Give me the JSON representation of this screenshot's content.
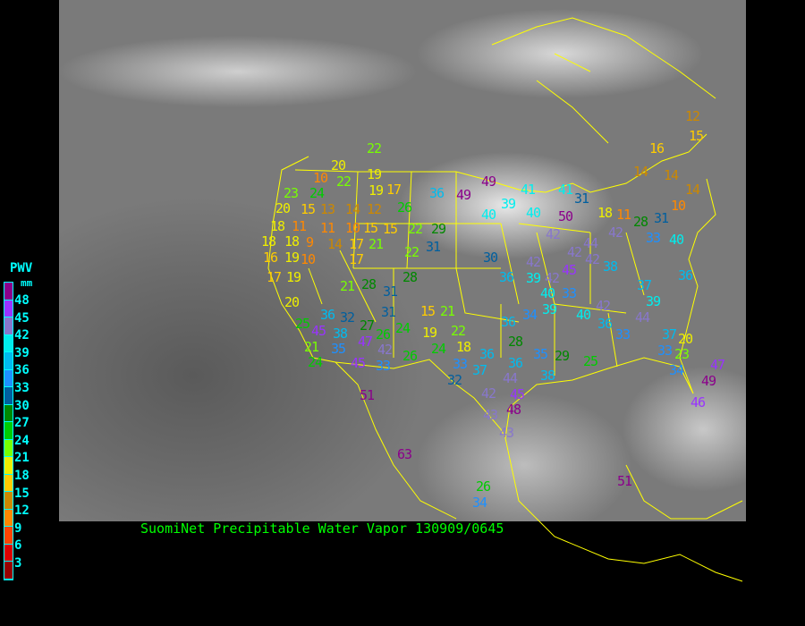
{
  "title": "SuomiNet Precipitable Water Vapor  130909/0645",
  "legend": {
    "title": "PWV",
    "unit": "mm",
    "labels": [
      "48",
      "45",
      "42",
      "39",
      "36",
      "33",
      "30",
      "27",
      "24",
      "21",
      "18",
      "15",
      "12",
      "9",
      "6",
      "3"
    ],
    "colors": [
      "#8b008b",
      "#9933ff",
      "#8877cc",
      "#00eeee",
      "#00bbee",
      "#1e90ff",
      "#005f9f",
      "#008800",
      "#00cc00",
      "#77ff00",
      "#eeee00",
      "#ffcc00",
      "#cc8800",
      "#ff8800",
      "#ff4400",
      "#dd0000",
      "#990000"
    ]
  },
  "map_colors": {
    "borders": "#ffff00",
    "title": "#00ff00"
  },
  "stations": [
    "22",
    "20",
    "10",
    "22",
    "19",
    "23",
    "24",
    "19",
    "17",
    "26",
    "36",
    "49",
    "49",
    "39",
    "41",
    "41",
    "31",
    "20",
    "15",
    "13",
    "14",
    "12",
    "40",
    "50",
    "40",
    "18",
    "11",
    "11",
    "10",
    "15",
    "15",
    "22",
    "29",
    "42",
    "18",
    "18",
    "9",
    "14",
    "17",
    "21",
    "22",
    "31",
    "16",
    "19",
    "10",
    "17",
    "30",
    "17",
    "19",
    "28",
    "36",
    "42",
    "39",
    "42",
    "42",
    "42",
    "38",
    "45",
    "40",
    "33",
    "37",
    "39",
    "21",
    "28",
    "31",
    "20",
    "31",
    "15",
    "21",
    "25",
    "36",
    "32",
    "27",
    "24",
    "19",
    "22",
    "45",
    "38",
    "26",
    "47",
    "21",
    "35",
    "42",
    "26",
    "24",
    "18",
    "28",
    "36",
    "34",
    "39",
    "40",
    "42",
    "36",
    "33",
    "44",
    "37",
    "20",
    "33",
    "23",
    "36",
    "33",
    "37",
    "36",
    "35",
    "38",
    "29",
    "25",
    "32",
    "42",
    "44",
    "45",
    "24",
    "45",
    "33",
    "43",
    "48",
    "43",
    "51",
    "63",
    "51",
    "34",
    "49",
    "46",
    "47",
    "26",
    "34",
    "12",
    "15",
    "16",
    "14",
    "14",
    "14",
    "10",
    "28",
    "31",
    "18",
    "11",
    "33",
    "40",
    "36",
    "42",
    "44"
  ]
}
